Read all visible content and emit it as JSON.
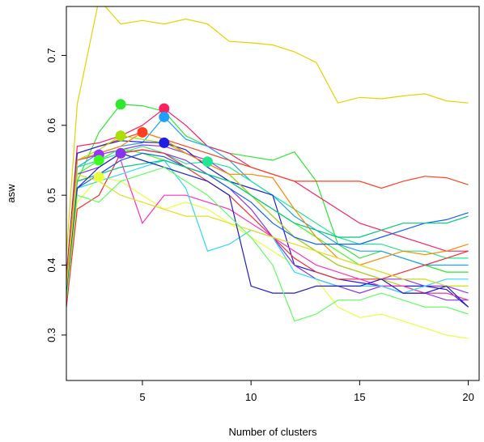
{
  "chart_data": {
    "type": "line",
    "title": "",
    "xlabel": "Number of clusters",
    "ylabel": "asw",
    "xlim": [
      1.5,
      20.5
    ],
    "ylim": [
      0.235,
      0.77
    ],
    "xticks": [
      5,
      10,
      15,
      20
    ],
    "yticks": [
      0.3,
      0.4,
      0.5,
      0.6,
      0.7
    ],
    "x_tick_labels": [
      "5",
      "10",
      "15",
      "20"
    ],
    "y_tick_labels": [
      "0.3",
      "0.4",
      "0.5",
      "0.6",
      "0.7"
    ],
    "grid": false,
    "legend": "none",
    "x": [
      1,
      2,
      3,
      4,
      5,
      6,
      7,
      8,
      9,
      10,
      11,
      12,
      13,
      14,
      15,
      16,
      17,
      18,
      19,
      20
    ],
    "series": [
      {
        "color": "#E6D200",
        "values": [
          0.2,
          0.63,
          0.78,
          0.745,
          0.75,
          0.745,
          0.752,
          0.745,
          0.72,
          0.718,
          0.715,
          0.705,
          0.69,
          0.632,
          0.64,
          0.638,
          0.642,
          0.645,
          0.635,
          0.632
        ],
        "peak": null
      },
      {
        "color": "#2EE830",
        "values": [
          0.2,
          0.52,
          0.59,
          0.63,
          0.628,
          0.62,
          0.585,
          0.57,
          0.56,
          0.555,
          0.55,
          0.562,
          0.52,
          0.43,
          0.41,
          0.42,
          0.41,
          0.4,
          0.39,
          0.39
        ],
        "peak": 4
      },
      {
        "color": "#FF2060",
        "values": [
          0.2,
          0.57,
          0.575,
          0.585,
          0.6,
          0.624,
          0.6,
          0.57,
          0.56,
          0.54,
          0.53,
          0.52,
          0.5,
          0.48,
          0.46,
          0.45,
          0.44,
          0.43,
          0.42,
          0.42
        ],
        "peak": 6
      },
      {
        "color": "#1FA0FF",
        "values": [
          0.2,
          0.54,
          0.56,
          0.57,
          0.575,
          0.612,
          0.58,
          0.57,
          0.55,
          0.52,
          0.5,
          0.47,
          0.45,
          0.43,
          0.42,
          0.42,
          0.41,
          0.4,
          0.4,
          0.4
        ],
        "peak": 6
      },
      {
        "color": "#FF4020",
        "values": [
          0.2,
          0.56,
          0.57,
          0.58,
          0.59,
          0.58,
          0.57,
          0.56,
          0.55,
          0.54,
          0.53,
          0.52,
          0.52,
          0.52,
          0.52,
          0.51,
          0.52,
          0.527,
          0.525,
          0.515
        ],
        "peak": 5
      },
      {
        "color": "#20E890",
        "values": [
          0.2,
          0.54,
          0.55,
          0.56,
          0.57,
          0.56,
          0.545,
          0.548,
          0.54,
          0.52,
          0.5,
          0.48,
          0.46,
          0.44,
          0.43,
          0.43,
          0.42,
          0.42,
          0.41,
          0.41
        ],
        "peak": 8
      },
      {
        "color": "#9B30FF",
        "values": [
          0.2,
          0.55,
          0.558,
          0.565,
          0.572,
          0.57,
          0.56,
          0.55,
          0.53,
          0.5,
          0.47,
          0.44,
          0.42,
          0.4,
          0.39,
          0.38,
          0.38,
          0.37,
          0.37,
          0.36
        ],
        "peak": 3
      },
      {
        "color": "#1E1EE6",
        "values": [
          0.2,
          0.56,
          0.57,
          0.578,
          0.576,
          0.575,
          0.565,
          0.54,
          0.52,
          0.51,
          0.5,
          0.4,
          0.39,
          0.38,
          0.375,
          0.37,
          0.37,
          0.37,
          0.365,
          0.34
        ],
        "peak": 6
      },
      {
        "color": "#A8E000",
        "values": [
          0.2,
          0.55,
          0.565,
          0.585,
          0.58,
          0.575,
          0.56,
          0.545,
          0.53,
          0.5,
          0.47,
          0.44,
          0.42,
          0.4,
          0.39,
          0.38,
          0.37,
          0.36,
          0.36,
          0.35
        ],
        "peak": 4
      },
      {
        "color": "#3CFF20",
        "values": [
          0.2,
          0.53,
          0.55,
          0.567,
          0.56,
          0.55,
          0.54,
          0.53,
          0.52,
          0.5,
          0.48,
          0.46,
          0.44,
          0.42,
          0.4,
          0.39,
          0.38,
          0.38,
          0.37,
          0.37
        ],
        "peak": 3
      },
      {
        "color": "#E8FF40",
        "values": [
          0.2,
          0.49,
          0.526,
          0.52,
          0.5,
          0.48,
          0.49,
          0.48,
          0.46,
          0.44,
          0.42,
          0.4,
          0.38,
          0.34,
          0.325,
          0.33,
          0.32,
          0.31,
          0.3,
          0.295
        ],
        "peak": 3
      },
      {
        "color": "#8833EE",
        "values": [
          0.2,
          0.53,
          0.54,
          0.56,
          0.565,
          0.56,
          0.55,
          0.53,
          0.51,
          0.48,
          0.44,
          0.4,
          0.38,
          0.37,
          0.36,
          0.37,
          0.36,
          0.36,
          0.35,
          0.35
        ],
        "peak": 4
      },
      {
        "color": "#FF8800",
        "values": [
          0.2,
          0.55,
          0.56,
          0.57,
          0.59,
          0.58,
          0.56,
          0.545,
          0.53,
          0.53,
          0.525,
          0.48,
          0.44,
          0.41,
          0.4,
          0.41,
          0.42,
          0.415,
          0.42,
          0.43
        ],
        "peak": null
      },
      {
        "color": "#FF2A2A",
        "values": [
          0.2,
          0.48,
          0.5,
          0.56,
          0.565,
          0.56,
          0.54,
          0.52,
          0.5,
          0.47,
          0.44,
          0.41,
          0.39,
          0.38,
          0.38,
          0.38,
          0.39,
          0.4,
          0.41,
          0.42
        ],
        "peak": null
      },
      {
        "color": "#FF30C0",
        "values": [
          0.2,
          0.52,
          0.53,
          0.55,
          0.46,
          0.5,
          0.5,
          0.49,
          0.48,
          0.46,
          0.44,
          0.42,
          0.4,
          0.39,
          0.38,
          0.37,
          0.37,
          0.36,
          0.36,
          0.35
        ],
        "peak": null
      },
      {
        "color": "#30D8FF",
        "values": [
          0.2,
          0.51,
          0.52,
          0.53,
          0.54,
          0.55,
          0.51,
          0.42,
          0.43,
          0.45,
          0.44,
          0.39,
          0.38,
          0.37,
          0.37,
          0.37,
          0.36,
          0.37,
          0.38,
          0.38
        ],
        "peak": null
      },
      {
        "color": "#1060FF",
        "values": [
          0.2,
          0.51,
          0.53,
          0.55,
          0.56,
          0.555,
          0.54,
          0.53,
          0.51,
          0.49,
          0.46,
          0.44,
          0.43,
          0.43,
          0.43,
          0.44,
          0.45,
          0.46,
          0.465,
          0.475
        ],
        "peak": null
      },
      {
        "color": "#00C878",
        "values": [
          0.2,
          0.52,
          0.53,
          0.54,
          0.545,
          0.55,
          0.54,
          0.53,
          0.52,
          0.5,
          0.48,
          0.46,
          0.45,
          0.44,
          0.44,
          0.45,
          0.46,
          0.46,
          0.46,
          0.47
        ],
        "peak": null
      },
      {
        "color": "#E0E020",
        "values": [
          0.2,
          0.53,
          0.52,
          0.5,
          0.49,
          0.48,
          0.47,
          0.47,
          0.46,
          0.45,
          0.44,
          0.43,
          0.42,
          0.41,
          0.4,
          0.39,
          0.38,
          0.38,
          0.37,
          0.37
        ],
        "peak": null
      },
      {
        "color": "#2020C0",
        "values": [
          0.2,
          0.51,
          0.54,
          0.56,
          0.55,
          0.54,
          0.53,
          0.52,
          0.5,
          0.37,
          0.36,
          0.36,
          0.37,
          0.37,
          0.37,
          0.38,
          0.36,
          0.36,
          0.37,
          0.34
        ],
        "peak": null
      },
      {
        "color": "#60FF60",
        "values": [
          0.2,
          0.5,
          0.49,
          0.52,
          0.53,
          0.54,
          0.52,
          0.5,
          0.47,
          0.44,
          0.4,
          0.32,
          0.33,
          0.35,
          0.35,
          0.36,
          0.35,
          0.34,
          0.34,
          0.33
        ],
        "peak": null
      }
    ]
  }
}
